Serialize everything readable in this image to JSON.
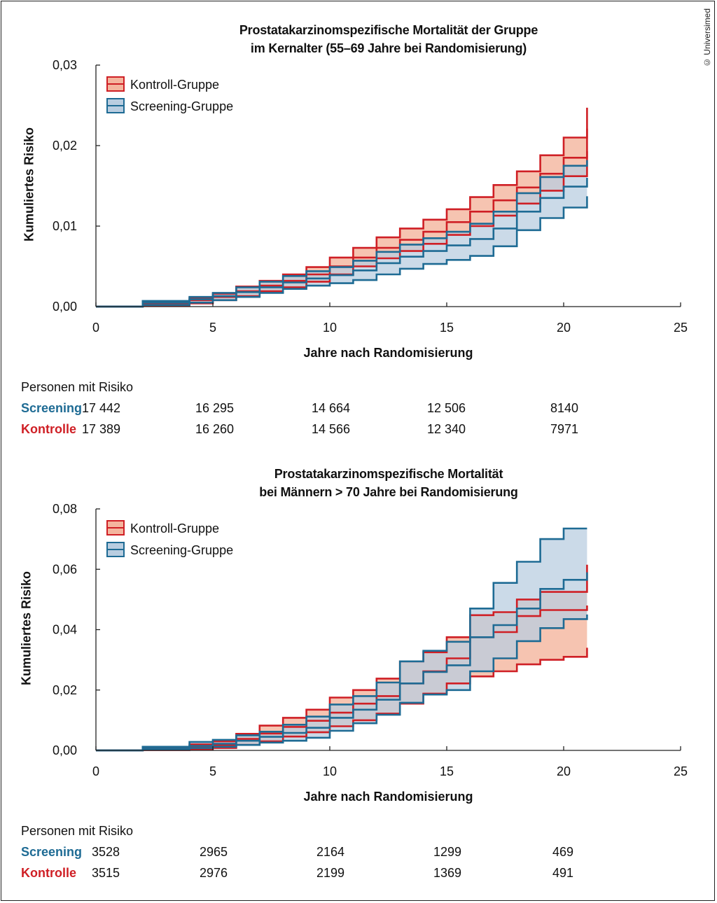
{
  "copyright": "© Universimed",
  "colors": {
    "control": "#cf1f25",
    "control_fill": "#f4b59e",
    "screening": "#1e6b94",
    "screening_fill": "#b9cde0",
    "overlap": "#5c6a80"
  },
  "risk_header": "Personen mit Risiko",
  "chart_data": [
    {
      "type": "line",
      "title_line1": "Prostatakarzinomspezifische Mortalität der Gruppe",
      "title_line2": "im Kernalter (55–69 Jahre bei Randomisierung)",
      "xlabel": "Jahre nach Randomisierung",
      "ylabel": "Kumuliertes Risiko",
      "xlim": [
        0,
        25
      ],
      "ylim": [
        0,
        0.03
      ],
      "xticks": [
        0,
        5,
        10,
        15,
        20,
        25
      ],
      "yticks": [
        0,
        0.01,
        0.02,
        0.03
      ],
      "yticklabels": [
        "0,00",
        "0,01",
        "0,02",
        "0,03"
      ],
      "legend_position": "top-left",
      "series": [
        {
          "name": "Kontroll-Gruppe",
          "x": [
            0,
            2,
            4,
            5,
            6,
            7,
            8,
            9,
            10,
            11,
            12,
            13,
            14,
            15,
            16,
            17,
            18,
            19,
            20,
            21
          ],
          "y": [
            0,
            0.0003,
            0.0008,
            0.0012,
            0.0019,
            0.0026,
            0.0032,
            0.004,
            0.005,
            0.0061,
            0.0073,
            0.0083,
            0.0093,
            0.0105,
            0.0118,
            0.0132,
            0.0148,
            0.0165,
            0.0185,
            0.0221
          ],
          "lower": [
            0,
            0.0001,
            0.0004,
            0.0008,
            0.0013,
            0.0019,
            0.0024,
            0.0031,
            0.004,
            0.005,
            0.006,
            0.0069,
            0.0078,
            0.0089,
            0.01,
            0.0113,
            0.0128,
            0.0144,
            0.0162,
            0.0193
          ],
          "upper": [
            0,
            0.0004,
            0.0011,
            0.0016,
            0.0025,
            0.0032,
            0.004,
            0.0049,
            0.0061,
            0.0073,
            0.0086,
            0.0097,
            0.0108,
            0.0121,
            0.0136,
            0.0151,
            0.0168,
            0.0188,
            0.021,
            0.0247
          ]
        },
        {
          "name": "Screening-Gruppe",
          "x": [
            0,
            2,
            4,
            5,
            6,
            7,
            8,
            9,
            10,
            11,
            12,
            13,
            14,
            15,
            16,
            17,
            18,
            19,
            20,
            21
          ],
          "y": [
            0,
            0.0005,
            0.0009,
            0.0013,
            0.0018,
            0.0024,
            0.003,
            0.0035,
            0.0039,
            0.0045,
            0.0054,
            0.0062,
            0.0069,
            0.0076,
            0.0084,
            0.0097,
            0.0118,
            0.0135,
            0.0149,
            0.016
          ],
          "lower": [
            0,
            0.0002,
            0.0005,
            0.0008,
            0.0012,
            0.0017,
            0.0022,
            0.0026,
            0.0029,
            0.0033,
            0.004,
            0.0047,
            0.0053,
            0.0058,
            0.0063,
            0.0075,
            0.0095,
            0.011,
            0.0123,
            0.0137
          ],
          "upper": [
            0,
            0.0007,
            0.0012,
            0.0017,
            0.0024,
            0.0031,
            0.0038,
            0.0044,
            0.0049,
            0.0057,
            0.0068,
            0.0077,
            0.0085,
            0.0093,
            0.0103,
            0.0118,
            0.0141,
            0.0161,
            0.0175,
            0.0182
          ]
        }
      ],
      "risk_table": {
        "rows": [
          {
            "label": "Screening",
            "values": [
              "17 442",
              "16 295",
              "14 664",
              "12 506",
              "8140"
            ]
          },
          {
            "label": "Kontrolle",
            "values": [
              "17 389",
              "16 260",
              "14 566",
              "12 340",
              "7971"
            ]
          }
        ]
      }
    },
    {
      "type": "line",
      "title_line1": "Prostatakarzinomspezifische Mortalität",
      "title_line2": "bei Männern > 70 Jahre bei Randomisierung",
      "xlabel": "Jahre nach Randomisierung",
      "ylabel": "Kumuliertes Risiko",
      "xlim": [
        0,
        25
      ],
      "ylim": [
        0,
        0.08
      ],
      "xticks": [
        0,
        5,
        10,
        15,
        20,
        25
      ],
      "yticks": [
        0,
        0.02,
        0.04,
        0.06,
        0.08
      ],
      "yticklabels": [
        "0,00",
        "0,02",
        "0,04",
        "0,06",
        "0,08"
      ],
      "legend_position": "top-left",
      "series": [
        {
          "name": "Kontroll-Gruppe",
          "x": [
            0,
            2,
            4,
            5,
            6,
            7,
            8,
            9,
            10,
            11,
            12,
            13,
            14,
            15,
            16,
            17,
            18,
            19,
            20,
            21
          ],
          "y": [
            0,
            0.0005,
            0.0012,
            0.0018,
            0.0038,
            0.0056,
            0.0078,
            0.0098,
            0.0125,
            0.0155,
            0.018,
            0.0222,
            0.0262,
            0.0305,
            0.0375,
            0.0392,
            0.0445,
            0.0465,
            0.0465,
            0.048
          ],
          "lower": [
            0,
            0.0001,
            0.0004,
            0.0008,
            0.0018,
            0.003,
            0.0046,
            0.006,
            0.008,
            0.01,
            0.0122,
            0.0155,
            0.0188,
            0.0222,
            0.0245,
            0.0262,
            0.0285,
            0.03,
            0.031,
            0.034
          ],
          "upper": [
            0,
            0.0008,
            0.002,
            0.003,
            0.0055,
            0.0082,
            0.0108,
            0.0135,
            0.0175,
            0.02,
            0.0238,
            0.0295,
            0.0325,
            0.0375,
            0.0448,
            0.0458,
            0.05,
            0.0525,
            0.0525,
            0.0615
          ]
        },
        {
          "name": "Screening-Gruppe",
          "x": [
            0,
            2,
            4,
            5,
            6,
            7,
            8,
            9,
            10,
            11,
            12,
            13,
            14,
            15,
            16,
            17,
            18,
            19,
            20,
            21
          ],
          "y": [
            0,
            0.0006,
            0.0015,
            0.0022,
            0.0032,
            0.0045,
            0.0058,
            0.0075,
            0.0108,
            0.0135,
            0.0168,
            0.0222,
            0.026,
            0.0282,
            0.0375,
            0.0415,
            0.047,
            0.0535,
            0.0565,
            0.059
          ],
          "lower": [
            0,
            0.0002,
            0.0008,
            0.0012,
            0.0018,
            0.0026,
            0.0032,
            0.0042,
            0.0065,
            0.009,
            0.0118,
            0.0158,
            0.0185,
            0.02,
            0.0262,
            0.0305,
            0.0362,
            0.0405,
            0.0435,
            0.045
          ],
          "upper": [
            0,
            0.0012,
            0.0028,
            0.0035,
            0.005,
            0.0062,
            0.0085,
            0.0112,
            0.0152,
            0.018,
            0.0225,
            0.0295,
            0.033,
            0.036,
            0.047,
            0.0555,
            0.0625,
            0.07,
            0.0735,
            0.0735
          ]
        }
      ],
      "risk_table": {
        "rows": [
          {
            "label": "Screening",
            "values": [
              "3528",
              "2965",
              "2164",
              "1299",
              "469"
            ]
          },
          {
            "label": "Kontrolle",
            "values": [
              "3515",
              "2976",
              "2199",
              "1369",
              "491"
            ]
          }
        ]
      }
    }
  ]
}
